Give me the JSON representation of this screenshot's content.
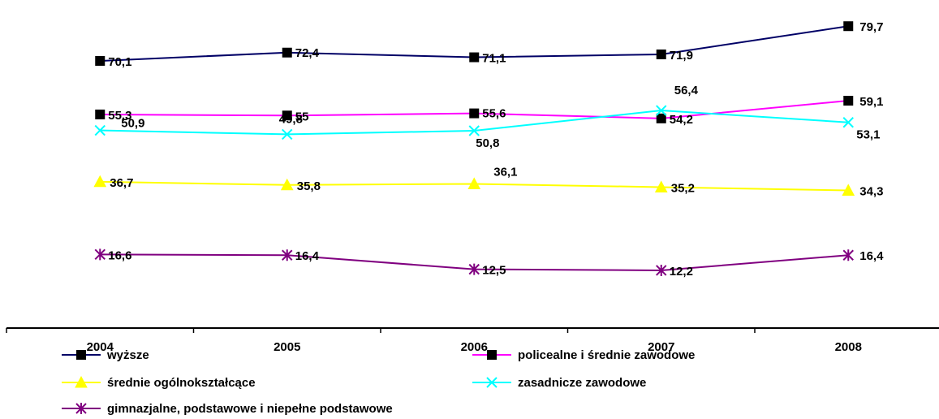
{
  "chart_data": {
    "type": "line",
    "categories": [
      "2004",
      "2005",
      "2006",
      "2007",
      "2008"
    ],
    "series": [
      {
        "name": "wyższe",
        "values": [
          70.1,
          72.4,
          71.1,
          71.9,
          79.7
        ],
        "labels": [
          "70,1",
          "72,4",
          "71,1",
          "71,9",
          "79,7"
        ],
        "color": "#000066",
        "marker": "square"
      },
      {
        "name": "policealne i średnie zawodowe",
        "values": [
          55.3,
          55,
          55.6,
          54.2,
          59.1
        ],
        "labels": [
          "55,3",
          "55",
          "55,6",
          "54,2",
          "59,1"
        ],
        "color": "#FF00FF",
        "marker": "square"
      },
      {
        "name": "średnie ogólnokształcące",
        "values": [
          36.7,
          35.8,
          36.1,
          35.2,
          34.3
        ],
        "labels": [
          "36,7",
          "35,8",
          "36,1",
          "35,2",
          "34,3"
        ],
        "color": "#FFFF00",
        "marker": "triangle"
      },
      {
        "name": "zasadnicze zawodowe",
        "values": [
          50.9,
          49.8,
          50.8,
          56.4,
          53.1
        ],
        "labels": [
          "50,9",
          "49,8",
          "50,8",
          "56,4",
          "53,1"
        ],
        "color": "#00FFFF",
        "marker": "x"
      },
      {
        "name": "gimnazjalne, podstawowe i niepełne podstawowe",
        "values": [
          16.6,
          16.4,
          12.5,
          12.2,
          16.4
        ],
        "labels": [
          "16,6",
          "16,4",
          "12,5",
          "12,2",
          "16,4"
        ],
        "color": "#800080",
        "marker": "star"
      }
    ],
    "ylim": [
      10,
      81
    ],
    "grid": false,
    "legend": "bottom"
  }
}
